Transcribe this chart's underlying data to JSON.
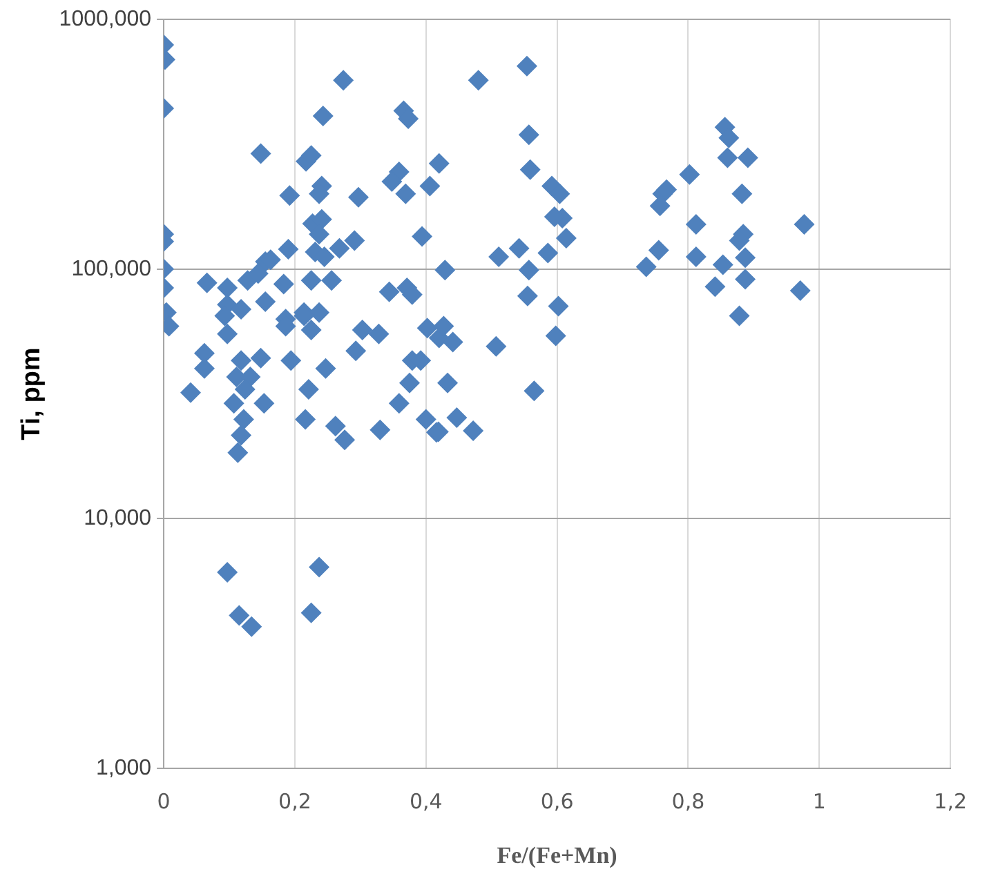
{
  "chart_data": {
    "type": "scatter",
    "xlabel": "Fe/(Fe+Mn)",
    "ylabel": "Ti, ppm",
    "log": "y",
    "grid": true,
    "legend": false,
    "marker": "diamond",
    "xlim": [
      0,
      1.2
    ],
    "xticks": [
      0,
      {
        "value": 0.2,
        "label": "0,2"
      },
      {
        "value": 0.4,
        "label": "0,4"
      },
      {
        "value": 0.6,
        "label": "0,6"
      },
      {
        "value": 0.8,
        "label": "0,8"
      },
      1,
      {
        "value": 1.2,
        "label": "1,2"
      }
    ],
    "ylim": [
      1000,
      1000000
    ],
    "yticks": [
      {
        "value": 1000,
        "label": "1,000"
      },
      {
        "value": 10000,
        "label": "10,000"
      },
      {
        "value": 100000,
        "label": "100,000"
      },
      {
        "value": 1000000,
        "label": "1000,000"
      }
    ],
    "series": [
      {
        "color": "#4f81bd",
        "x": [
          0,
          0.002,
          0,
          0.274,
          0.243,
          0.366,
          0.373,
          0.148,
          0.217,
          0.225,
          0.192,
          0.241,
          0.237,
          0.297,
          0.359,
          0.348,
          0.369,
          0.406,
          0.42,
          0,
          0,
          0.227,
          0.241,
          0.237,
          0.268,
          0.291,
          0.394,
          0.19,
          0.231,
          0.245,
          0.155,
          0.163,
          0,
          0,
          0.004,
          0.066,
          0.097,
          0.128,
          0.144,
          0.183,
          0.225,
          0.256,
          0.155,
          0.097,
          0.118,
          0.344,
          0.371,
          0.379,
          0.214,
          0.237,
          0.186,
          0.008,
          0.093,
          0.186,
          0.214,
          0.225,
          0.097,
          0.062,
          0.062,
          0.041,
          0.118,
          0.148,
          0.194,
          0.111,
          0.132,
          0.124,
          0.153,
          0.107,
          0.118,
          0.113,
          0.122,
          0.221,
          0.247,
          0.216,
          0.262,
          0.276,
          0.293,
          0.303,
          0.328,
          0.359,
          0.33,
          0.4,
          0.416,
          0.379,
          0.392,
          0.375,
          0.097,
          0.237,
          0.115,
          0.134,
          0.225,
          0.402,
          0.42,
          0.554,
          0.48,
          0.557,
          0.559,
          0.592,
          0.604,
          0.608,
          0.596,
          0.614,
          0.586,
          0.511,
          0.542,
          0.557,
          0.429,
          0.555,
          0.602,
          0.598,
          0.507,
          0.565,
          0.427,
          0.441,
          0.433,
          0.447,
          0.472,
          0.419,
          0.761,
          0.767,
          0.757,
          0.802,
          0.812,
          0.812,
          0.755,
          0.736,
          0.86,
          0.891,
          0.882,
          0.977,
          0.884,
          0.878,
          0.887,
          0.853,
          0.887,
          0.841,
          0.971,
          0.878,
          0.856,
          0.862
        ],
        "values": [
          790000,
          690000,
          440000,
          570000,
          410000,
          430000,
          400000,
          290000,
          270000,
          285000,
          197000,
          215000,
          200000,
          194000,
          245000,
          224000,
          200000,
          215000,
          265000,
          138000,
          129000,
          152000,
          158000,
          138000,
          121000,
          130000,
          135000,
          120000,
          117000,
          112000,
          107000,
          109000,
          100000,
          84000,
          67000,
          88000,
          84000,
          90000,
          96000,
          87000,
          90000,
          90000,
          74000,
          72000,
          69000,
          81000,
          84000,
          79000,
          67000,
          67000,
          63000,
          59000,
          65000,
          59000,
          65000,
          57000,
          55000,
          46000,
          40000,
          32000,
          43000,
          44000,
          43000,
          37000,
          37000,
          33000,
          29000,
          29000,
          21600,
          18400,
          25000,
          33000,
          40000,
          25000,
          23500,
          20700,
          47000,
          57000,
          55000,
          29000,
          22700,
          25000,
          22200,
          43000,
          43000,
          35000,
          6100,
          6400,
          4100,
          3700,
          4200,
          58000,
          53000,
          650000,
          570000,
          345000,
          250000,
          215000,
          200000,
          160000,
          162000,
          133000,
          116000,
          112000,
          121000,
          99000,
          99000,
          78000,
          71000,
          54000,
          49000,
          32500,
          59000,
          51000,
          35000,
          25400,
          22500,
          22300,
          200000,
          208000,
          179000,
          239000,
          151000,
          112000,
          119000,
          102000,
          279000,
          279000,
          200000,
          151000,
          138000,
          130000,
          111000,
          104000,
          91000,
          85000,
          82000,
          65000,
          370000,
          335000
        ]
      }
    ]
  }
}
